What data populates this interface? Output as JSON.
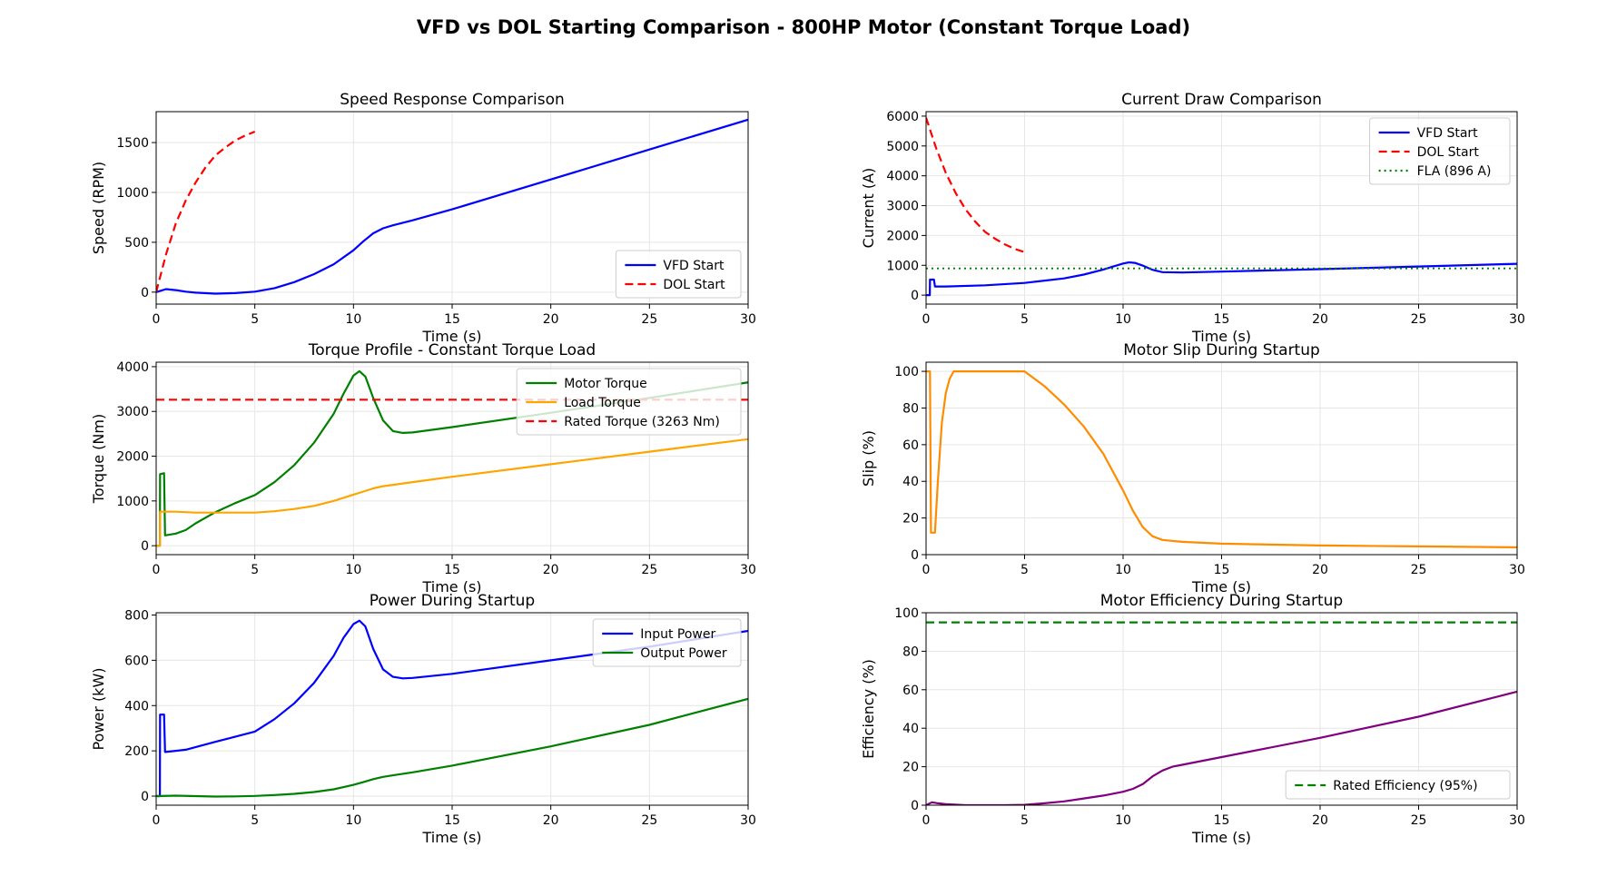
{
  "figure": {
    "title": "VFD vs DOL Starting Comparison - 800HP Motor (Constant Torque Load)"
  },
  "colors": {
    "vfd": "#0000ff",
    "dol": "#ff0000",
    "motor_torque": "#008000",
    "load_torque": "#ffa500",
    "rated_line": "#ff0000",
    "fla_line": "#008000",
    "slip": "#ff8c00",
    "efficiency": "#800080",
    "rated_eff": "#008000",
    "grid": "#e6e6e6"
  },
  "chart_data": [
    {
      "id": "speed",
      "type": "line",
      "title": "Speed Response Comparison",
      "xlabel": "Time (s)",
      "ylabel": "Speed (RPM)",
      "xlim": [
        0,
        30
      ],
      "ylim": [
        -120,
        1810
      ],
      "xticks": [
        0,
        5,
        10,
        15,
        20,
        25,
        30
      ],
      "yticks": [
        0,
        500,
        1000,
        1500
      ],
      "grid": true,
      "legend": "lower-right",
      "series": [
        {
          "name": "VFD Start",
          "color": "#0000ff",
          "dash": "solid",
          "x": [
            0,
            0.5,
            1,
            1.5,
            2,
            3,
            4,
            5,
            6,
            7,
            8,
            9,
            10,
            10.5,
            11,
            11.5,
            12,
            13,
            15,
            20,
            25,
            30
          ],
          "y": [
            0,
            30,
            20,
            5,
            -5,
            -15,
            -10,
            5,
            40,
            100,
            180,
            280,
            420,
            510,
            590,
            640,
            670,
            720,
            830,
            1130,
            1430,
            1730
          ]
        },
        {
          "name": "DOL Start",
          "color": "#ff0000",
          "dash": "dashed",
          "x": [
            0,
            0.5,
            1,
            1.5,
            2,
            2.5,
            3,
            3.5,
            4,
            4.5,
            5
          ],
          "y": [
            0,
            380,
            690,
            920,
            1100,
            1250,
            1370,
            1450,
            1520,
            1570,
            1610
          ]
        }
      ]
    },
    {
      "id": "current",
      "type": "line",
      "title": "Current Draw Comparison",
      "xlabel": "Time (s)",
      "ylabel": "Current (A)",
      "xlim": [
        0,
        30
      ],
      "ylim": [
        -300,
        6150
      ],
      "xticks": [
        0,
        5,
        10,
        15,
        20,
        25,
        30
      ],
      "yticks": [
        0,
        1000,
        2000,
        3000,
        4000,
        5000,
        6000
      ],
      "grid": true,
      "legend": "upper-right",
      "series": [
        {
          "name": "VFD Start",
          "color": "#0000ff",
          "dash": "solid",
          "x": [
            0,
            0.19,
            0.2,
            0.4,
            0.45,
            1,
            3,
            5,
            7,
            8,
            9,
            9.5,
            10,
            10.3,
            10.6,
            11,
            11.5,
            12,
            13,
            15,
            20,
            25,
            30
          ],
          "y": [
            0,
            0,
            520,
            520,
            290,
            290,
            330,
            410,
            560,
            690,
            860,
            960,
            1060,
            1100,
            1080,
            990,
            850,
            770,
            760,
            790,
            870,
            960,
            1050
          ]
        },
        {
          "name": "DOL Start",
          "color": "#ff0000",
          "dash": "dashed",
          "x": [
            0,
            0.5,
            1,
            1.5,
            2,
            2.5,
            3,
            3.5,
            4,
            4.5,
            5
          ],
          "y": [
            5950,
            4950,
            4100,
            3430,
            2880,
            2460,
            2120,
            1890,
            1700,
            1550,
            1440
          ]
        },
        {
          "name": "FLA (896 A)",
          "color": "#008000",
          "dash": "dotted",
          "x": [
            0,
            30
          ],
          "y": [
            896,
            896
          ]
        }
      ]
    },
    {
      "id": "torque",
      "type": "line",
      "title": "Torque Profile - Constant Torque Load",
      "xlabel": "Time (s)",
      "ylabel": "Torque (Nm)",
      "xlim": [
        0,
        30
      ],
      "ylim": [
        -200,
        4100
      ],
      "xticks": [
        0,
        5,
        10,
        15,
        20,
        25,
        30
      ],
      "yticks": [
        0,
        1000,
        2000,
        3000,
        4000
      ],
      "grid": true,
      "legend": "upper-right",
      "series": [
        {
          "name": "Motor Torque",
          "color": "#008000",
          "dash": "solid",
          "x": [
            0,
            0.19,
            0.2,
            0.4,
            0.45,
            1,
            1.5,
            2,
            3,
            4,
            5,
            6,
            7,
            8,
            9,
            9.5,
            10,
            10.3,
            10.6,
            11,
            11.5,
            12,
            12.5,
            13,
            15,
            20,
            25,
            30
          ],
          "y": [
            0,
            0,
            1600,
            1620,
            230,
            270,
            350,
            500,
            750,
            950,
            1130,
            1420,
            1800,
            2300,
            2950,
            3400,
            3800,
            3900,
            3780,
            3300,
            2800,
            2560,
            2520,
            2530,
            2650,
            2970,
            3300,
            3650
          ]
        },
        {
          "name": "Load Torque",
          "color": "#ffa500",
          "dash": "solid",
          "x": [
            0,
            0.19,
            0.2,
            1,
            2,
            3,
            5,
            6,
            7,
            8,
            9,
            10,
            10.5,
            11,
            11.5,
            12,
            13,
            15,
            20,
            25,
            30
          ],
          "y": [
            0,
            0,
            760,
            760,
            740,
            740,
            740,
            770,
            820,
            890,
            1000,
            1140,
            1210,
            1280,
            1330,
            1360,
            1420,
            1540,
            1820,
            2100,
            2380
          ]
        },
        {
          "name": "Rated Torque (3263 Nm)",
          "color": "#ff0000",
          "dash": "dashed",
          "x": [
            0,
            30
          ],
          "y": [
            3263,
            3263
          ]
        }
      ]
    },
    {
      "id": "slip",
      "type": "line",
      "title": "Motor Slip During Startup",
      "xlabel": "Time (s)",
      "ylabel": "Slip (%)",
      "xlim": [
        0,
        30
      ],
      "ylim": [
        0,
        105
      ],
      "xticks": [
        0,
        5,
        10,
        15,
        20,
        25,
        30
      ],
      "yticks": [
        0,
        20,
        40,
        60,
        80,
        100
      ],
      "grid": true,
      "legend": "none",
      "series": [
        {
          "name": "",
          "color": "#ff8c00",
          "dash": "solid",
          "x": [
            0,
            0.2,
            0.25,
            0.45,
            0.6,
            0.8,
            1.0,
            1.2,
            1.4,
            2,
            3,
            4,
            5,
            6,
            7,
            8,
            9,
            10,
            10.5,
            11,
            11.5,
            12,
            13,
            15,
            20,
            25,
            30
          ],
          "y": [
            100,
            100,
            12,
            12,
            40,
            72,
            88,
            96,
            100,
            100,
            100,
            100,
            100,
            92,
            82,
            70,
            55,
            35,
            24,
            15,
            10,
            8,
            7,
            6,
            5,
            4.5,
            4
          ]
        }
      ]
    },
    {
      "id": "power",
      "type": "line",
      "title": "Power During Startup",
      "xlabel": "Time (s)",
      "ylabel": "Power (kW)",
      "xlim": [
        0,
        30
      ],
      "ylim": [
        -40,
        810
      ],
      "xticks": [
        0,
        5,
        10,
        15,
        20,
        25,
        30
      ],
      "yticks": [
        0,
        200,
        400,
        600,
        800
      ],
      "grid": true,
      "legend": "upper-right",
      "series": [
        {
          "name": "Input Power",
          "color": "#0000ff",
          "dash": "solid",
          "x": [
            0,
            0.19,
            0.2,
            0.4,
            0.45,
            1,
            1.5,
            3,
            5,
            6,
            7,
            8,
            9,
            9.5,
            10,
            10.3,
            10.6,
            11,
            11.5,
            12,
            12.5,
            13,
            15,
            20,
            25,
            30
          ],
          "y": [
            0,
            0,
            360,
            360,
            195,
            200,
            205,
            240,
            285,
            340,
            410,
            500,
            620,
            700,
            760,
            775,
            750,
            650,
            560,
            527,
            520,
            522,
            540,
            600,
            660,
            730
          ]
        },
        {
          "name": "Output Power",
          "color": "#008000",
          "dash": "solid",
          "x": [
            0,
            1,
            2,
            3,
            4,
            5,
            6,
            7,
            8,
            9,
            10,
            10.5,
            11,
            11.5,
            12,
            13,
            15,
            20,
            25,
            30
          ],
          "y": [
            0,
            2,
            0,
            -2,
            -1,
            1,
            5,
            10,
            18,
            30,
            50,
            62,
            75,
            85,
            92,
            105,
            135,
            220,
            315,
            430
          ]
        }
      ]
    },
    {
      "id": "efficiency",
      "type": "line",
      "title": "Motor Efficiency During Startup",
      "xlabel": "Time (s)",
      "ylabel": "Efficiency (%)",
      "xlim": [
        0,
        30
      ],
      "ylim": [
        0,
        100
      ],
      "xticks": [
        0,
        5,
        10,
        15,
        20,
        25,
        30
      ],
      "yticks": [
        0,
        20,
        40,
        60,
        80,
        100
      ],
      "grid": true,
      "legend": "lower-right",
      "series": [
        {
          "name": "",
          "color": "#800080",
          "dash": "solid",
          "x": [
            0,
            0.3,
            0.6,
            1,
            2,
            3,
            4,
            5,
            6,
            7,
            8,
            9,
            10,
            10.5,
            11,
            11.5,
            12,
            12.5,
            13,
            15,
            20,
            25,
            30
          ],
          "y": [
            0,
            1.5,
            1,
            0.5,
            0,
            0,
            0,
            0.2,
            1,
            2,
            3.5,
            5,
            7,
            8.5,
            11,
            15,
            18,
            20,
            21,
            25,
            35,
            46,
            59
          ]
        },
        {
          "name": "Rated Efficiency (95%)",
          "color": "#008000",
          "dash": "dashed",
          "x": [
            0,
            30
          ],
          "y": [
            95,
            95
          ]
        }
      ]
    }
  ]
}
